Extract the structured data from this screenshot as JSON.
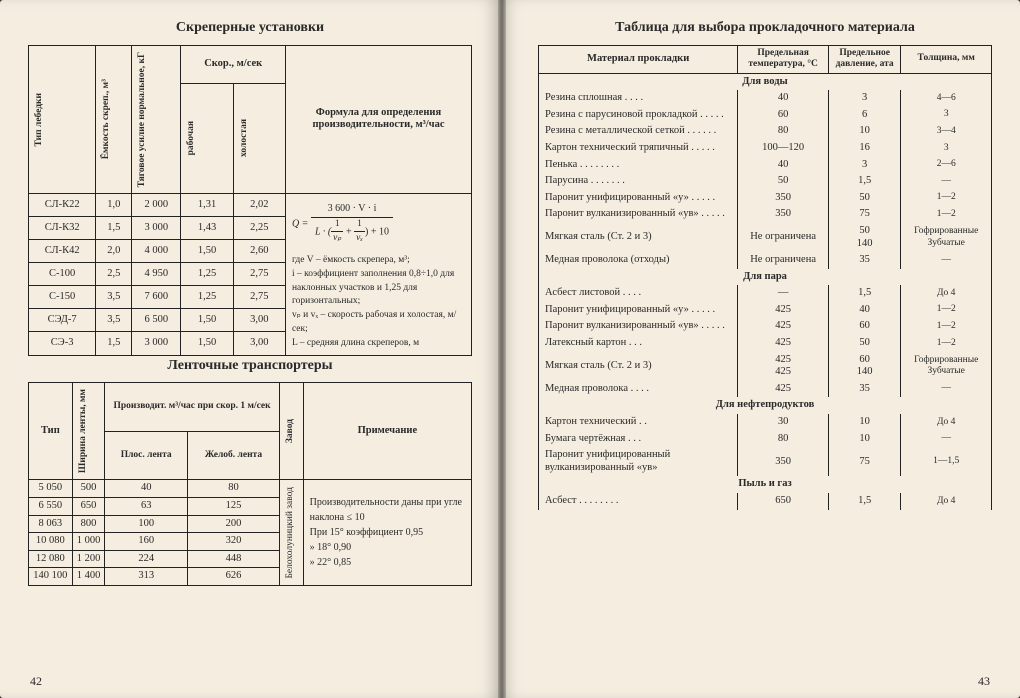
{
  "left": {
    "title1": "Скреперные установки",
    "t1_headers": {
      "c1": "Тип лебедки",
      "c2": "Ёмкость скреп., м³",
      "c3": "Тяговое усилие нормальное, кГ",
      "c4": "Скор., м/сек",
      "c4a": "рабочая",
      "c4b": "холостая",
      "c5": "Формула для определения производительности, м³/час"
    },
    "t1_rows": [
      [
        "СЛ-К22",
        "1,0",
        "2 000",
        "1,31",
        "2,02"
      ],
      [
        "СЛ-К32",
        "1,5",
        "3 000",
        "1,43",
        "2,25"
      ],
      [
        "СЛ-К42",
        "2,0",
        "4 000",
        "1,50",
        "2,60"
      ],
      [
        "С-100",
        "2,5",
        "4 950",
        "1,25",
        "2,75"
      ],
      [
        "С-150",
        "3,5",
        "7 600",
        "1,25",
        "2,75"
      ],
      [
        "СЭД-7",
        "3,5",
        "6 500",
        "1,50",
        "3,00"
      ],
      [
        "СЭ-3",
        "1,5",
        "3 000",
        "1,50",
        "3,00"
      ]
    ],
    "formula": {
      "lead": "Q =",
      "num": "3 600 · V · i",
      "den_lead": "L · (",
      "den_mid_1n": "1",
      "den_mid_1d": "vₚ",
      "den_plus": " + ",
      "den_mid_2n": "1",
      "den_mid_2d": "vₓ",
      "den_tail": ") + 10",
      "legend": [
        "где V – ёмкость скрепера, м³;",
        "i – коэффициент заполнения 0,8÷1,0 для наклонных участков и 1,25 для горизонтальных;",
        "vₚ и vₓ – скорость рабочая и холостая, м/сек;",
        "L – средняя длина скреперов, м"
      ]
    },
    "title2": "Ленточные транспортеры",
    "t2_headers": {
      "c1": "Тип",
      "c2": "Ширина ленты, мм",
      "c3": "Производит. м³/час при скор. 1 м/сек",
      "c3a": "Плос. лента",
      "c3b": "Желоб. лента",
      "c4": "Завод",
      "c5": "Примечание"
    },
    "t2_rows": [
      [
        "5 050",
        "500",
        "40",
        "80"
      ],
      [
        "6 550",
        "650",
        "63",
        "125"
      ],
      [
        "8 063",
        "800",
        "100",
        "200"
      ],
      [
        "10 080",
        "1 000",
        "160",
        "320"
      ],
      [
        "12 080",
        "1 200",
        "224",
        "448"
      ],
      [
        "140 100",
        "1 400",
        "313",
        "626"
      ]
    ],
    "t2_factory": "Белохолуницкий завод",
    "t2_note": [
      "Производительности даны при угле наклона ≤ 10",
      "При 15°   коэффициент 0,95",
      "  »  18°                      0,90",
      "  »  22°                      0,85"
    ],
    "pagenum": "42"
  },
  "right": {
    "title": "Таблица для выбора прокладочного материала",
    "headers": {
      "c1": "Материал прокладки",
      "c2": "Предельная температура, °С",
      "c3": "Предельное давление, ата",
      "c4": "Толщина, мм"
    },
    "sections": [
      {
        "head": "Для воды",
        "rows": [
          [
            "Резина сплошная . . . .",
            "40",
            "3",
            "4—6"
          ],
          [
            "Резина с парусиновой прокладкой . . . . .",
            "60",
            "6",
            "3"
          ],
          [
            "Резина с металлической сеткой . . . . . .",
            "80",
            "10",
            "3—4"
          ],
          [
            "Картон технический тряпичный . . . . .",
            "100—120",
            "16",
            "3"
          ],
          [
            "Пенька . . . . . . . .",
            "40",
            "3",
            "2—6"
          ],
          [
            "Парусина . . . . . . .",
            "50",
            "1,5",
            "—"
          ],
          [
            "Паронит унифицированный «у» . . . . .",
            "350",
            "50",
            "1—2"
          ],
          [
            "Паронит вулканизированный «ув» . . . . .",
            "350",
            "75",
            "1—2"
          ],
          [
            "Мягкая сталь (Ст. 2 и 3)",
            "Не ограничена",
            "50\n140",
            "Гофрированные Зубчатые"
          ],
          [
            "Медная проволока (отходы)",
            "Не ограничена",
            "35",
            "—"
          ]
        ]
      },
      {
        "head": "Для пара",
        "rows": [
          [
            "Асбест листовой . . . .",
            "—",
            "1,5",
            "До 4"
          ],
          [
            "Паронит унифицированный «у» . . . . .",
            "425",
            "40",
            "1—2"
          ],
          [
            "Паронит вулканизированный «ув» . . . . .",
            "425",
            "60",
            "1—2"
          ],
          [
            "Латексный картон . . .",
            "425",
            "50",
            "1—2"
          ],
          [
            "Мягкая сталь (Ст. 2 и 3)",
            "425\n425",
            "60\n140",
            "Гофрированные Зубчатые"
          ],
          [
            "Медная проволока . . . .",
            "425",
            "35",
            "—"
          ]
        ]
      },
      {
        "head": "Для нефтепродуктов",
        "rows": [
          [
            "Картон технический . .",
            "30",
            "10",
            "До 4"
          ],
          [
            "Бумага чертёжная . . .",
            "80",
            "10",
            "—"
          ],
          [
            "Паронит унифицированный вулканизированный «ув»",
            "350",
            "75",
            "1—1,5"
          ]
        ]
      },
      {
        "head": "Пыль и газ",
        "rows": [
          [
            "Асбест . . . . . . . .",
            "650",
            "1,5",
            "До 4"
          ]
        ]
      }
    ],
    "pagenum": "43"
  },
  "colors": {
    "paper": "#f4ede0",
    "ink": "#2a2a2a",
    "border": "#222222",
    "edge": "#3a2820"
  }
}
